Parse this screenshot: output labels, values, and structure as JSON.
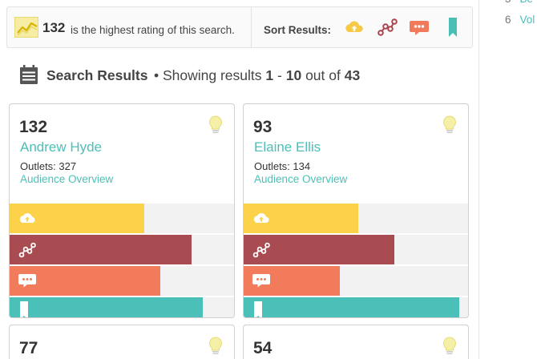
{
  "header": {
    "top_rating": "132",
    "top_rating_text": "is the highest rating of this search.",
    "sort_label": "Sort Results:",
    "rating_icon": "sparkline-icon",
    "sort_options": [
      {
        "icon": "cloud-upload-icon",
        "color": "#f7c948"
      },
      {
        "icon": "network-nodes-icon",
        "color": "#a8454d"
      },
      {
        "icon": "speech-bubble-icon",
        "color": "#f07a5a"
      },
      {
        "icon": "bookmark-icon",
        "color": "#49bfb6"
      }
    ]
  },
  "sidebar": {
    "items": [
      {
        "number": "5",
        "label": "Be"
      },
      {
        "number": "6",
        "label": "Vol"
      }
    ]
  },
  "results": {
    "heading": "Search Results",
    "showing_prefix": "• Showing results",
    "range_start": "1",
    "range_sep": "-",
    "range_end": "10",
    "out_of": "out of",
    "total": "43"
  },
  "colors": {
    "accent": "#4bbfb8",
    "bar_yellow": "#fdd24b",
    "bar_maroon": "#a84c51",
    "bar_salmon": "#f27b5c",
    "bar_teal": "#4bc0b8"
  },
  "cards": [
    {
      "rating": "132",
      "name": "Andrew Hyde",
      "outlets": "Outlets: 327",
      "link": "Audience Overview",
      "bars": [
        0.6,
        0.81,
        0.67,
        0.86
      ]
    },
    {
      "rating": "93",
      "name": "Elaine Ellis",
      "outlets": "Outlets: 134",
      "link": "Audience Overview",
      "bars": [
        0.51,
        0.67,
        0.43,
        0.96
      ]
    },
    {
      "rating": "77",
      "name": "",
      "outlets": "",
      "link": "",
      "bars": []
    },
    {
      "rating": "54",
      "name": "",
      "outlets": "",
      "link": "",
      "bars": []
    }
  ]
}
